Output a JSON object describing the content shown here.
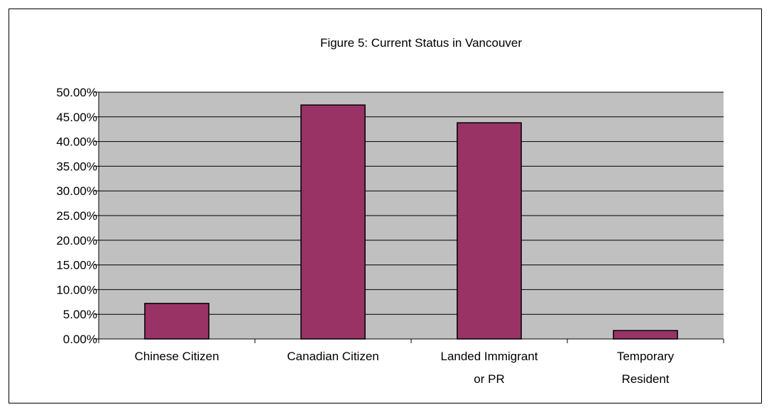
{
  "chart_data": {
    "type": "bar",
    "title": "Figure 5: Current Status in Vancouver",
    "categories": [
      [
        "Chinese Citizen"
      ],
      [
        "Canadian Citizen"
      ],
      [
        "Landed Immigrant",
        "or PR"
      ],
      [
        "Temporary",
        "Resident"
      ]
    ],
    "values": [
      7.2,
      47.4,
      43.8,
      1.7
    ],
    "ylim": [
      0,
      50
    ],
    "yticks": [
      "0.00%",
      "5.00%",
      "10.00%",
      "15.00%",
      "20.00%",
      "25.00%",
      "30.00%",
      "35.00%",
      "40.00%",
      "45.00%",
      "50.00%"
    ],
    "xlabel": "",
    "ylabel": "",
    "grid": true,
    "legend": "none",
    "colors": {
      "bar_fill": "#993366",
      "bar_stroke": "#000000",
      "plot_background": "#c0c0c0",
      "gridline": "#000000"
    }
  }
}
